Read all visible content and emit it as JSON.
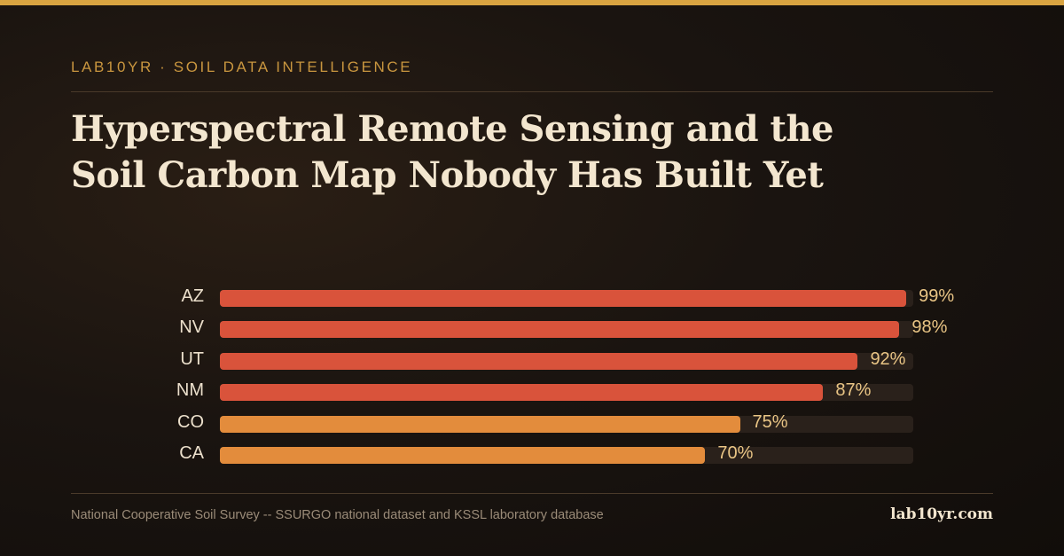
{
  "colors": {
    "accent": "#d9a441",
    "bar_high": "#d9533b",
    "bar_mid": "#e38c3c",
    "track": "#2a211b",
    "value_text": "#e9c585"
  },
  "header": {
    "kicker": "LAB10YR · SOIL DATA INTELLIGENCE",
    "title": "Hyperspectral Remote Sensing and the Soil Carbon Map Nobody Has Built Yet"
  },
  "chart_data": {
    "type": "bar",
    "orientation": "horizontal",
    "categories": [
      "AZ",
      "NV",
      "UT",
      "NM",
      "CO",
      "CA"
    ],
    "values": [
      99,
      98,
      92,
      87,
      75,
      70
    ],
    "value_labels": [
      "99%",
      "98%",
      "92%",
      "87%",
      "75%",
      "70%"
    ],
    "xlim": [
      0,
      100
    ],
    "grid": false,
    "legend": "none",
    "bar_colors": [
      "#d9533b",
      "#d9533b",
      "#d9533b",
      "#d9533b",
      "#e38c3c",
      "#e38c3c"
    ]
  },
  "footer": {
    "source": "National Cooperative Soil Survey -- SSURGO national dataset and KSSL laboratory database",
    "brand": "lab10yr.com"
  }
}
